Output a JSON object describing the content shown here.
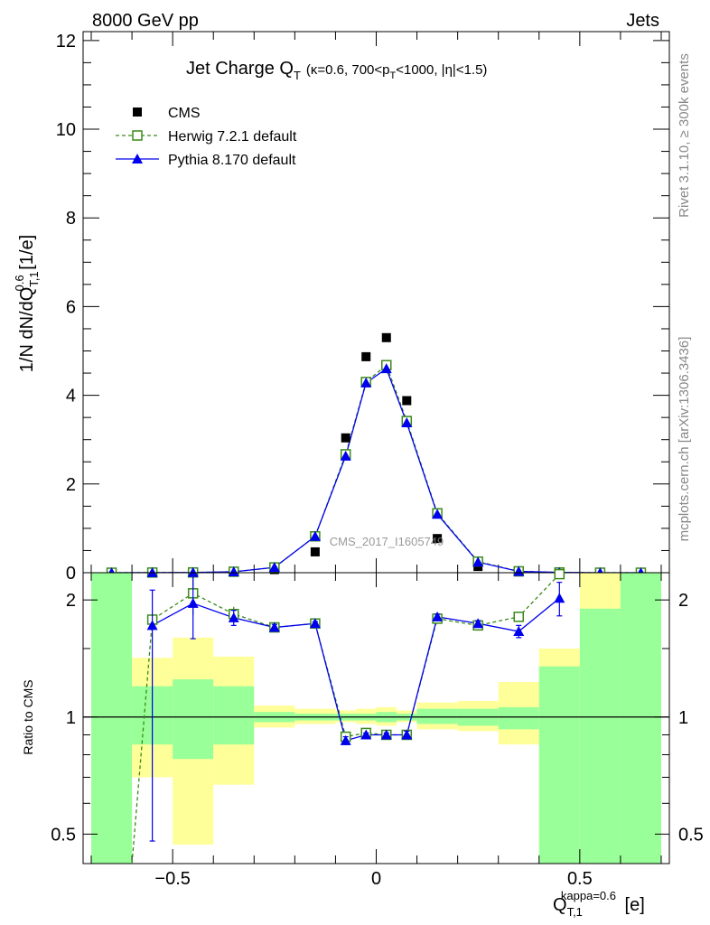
{
  "header": {
    "left": "8000 GeV pp",
    "right": "Jets"
  },
  "side_text": {
    "rivet": "Rivet 3.1.10, ≥ 300k events",
    "mcplots": "mcplots.cern.ch [arXiv:1306.3436]"
  },
  "watermark": "CMS_2017_I1605749",
  "chart_data": [
    {
      "type": "scatter",
      "title": "Jet Charge Q_T (κ=0.6, 700<p_T<1000, |η|<1.5)",
      "title_main": "Jet Charge Q",
      "title_sub": "T",
      "title_cond": "(κ=0.6, 700<p",
      "title_cond_sub": "T",
      "title_cond_end": "<1000, |η|<1.5)",
      "ylabel": "1/N dN/dQ_T,1^0.6 [1/e]",
      "ylabel_main": "1/N dN/dQ",
      "ylabel_sub": "T,1",
      "ylabel_sup": "0.6",
      "ylabel_unit": " [1/e]",
      "xlim": [
        -0.72,
        0.72
      ],
      "ylim": [
        0,
        12.2
      ],
      "yticks": [
        0,
        2,
        4,
        6,
        8,
        10,
        12
      ],
      "ytick_labels": [
        "0",
        "2",
        "4",
        "6",
        "8",
        "10",
        "12"
      ],
      "x": [
        -0.65,
        -0.55,
        -0.45,
        -0.35,
        -0.25,
        -0.15,
        -0.075,
        -0.025,
        0.025,
        0.075,
        0.15,
        0.25,
        0.35,
        0.45,
        0.55,
        0.65
      ],
      "series": [
        {
          "name": "CMS",
          "color": "#000000",
          "marker": "square-filled",
          "values": [
            0.0,
            0.002,
            0.003,
            0.012,
            0.07,
            0.47,
            3.04,
            4.87,
            5.3,
            3.88,
            0.77,
            0.14,
            0.018,
            0.003,
            0.0005,
            0.0
          ]
        },
        {
          "name": "Herwig 7.2.1 default",
          "color": "#3a8a1a",
          "marker": "square-open",
          "line": "dashed",
          "values": [
            0.0,
            0.0035,
            0.006,
            0.022,
            0.12,
            0.82,
            2.67,
            4.3,
            4.68,
            3.42,
            1.34,
            0.25,
            0.032,
            0.006,
            0.0004,
            0.0
          ]
        },
        {
          "name": "Pythia 8.170 default",
          "color": "#0000ee",
          "marker": "triangle-filled",
          "line": "solid",
          "values": [
            0.0,
            0.0033,
            0.0057,
            0.021,
            0.12,
            0.82,
            2.63,
            4.28,
            4.6,
            3.38,
            1.32,
            0.24,
            0.029,
            0.006,
            0.0004,
            0.0
          ]
        }
      ]
    },
    {
      "type": "line",
      "ylabel": "Ratio to CMS",
      "xlabel": "Q_T,1^kappa=0.6 [e]",
      "xlabel_main": "Q",
      "xlabel_sub": "T,1",
      "xlabel_sup": "kappa=0.6",
      "xlabel_unit": " [e]",
      "xlim": [
        -0.72,
        0.72
      ],
      "ylim": [
        0.42,
        2.35
      ],
      "log_scale_y": true,
      "xticks": [
        -0.5,
        0,
        0.5
      ],
      "xtick_labels": [
        "−0.5",
        "0",
        "0.5"
      ],
      "yticks": [
        0.5,
        1,
        2
      ],
      "ytick_labels": [
        "0.5",
        "1",
        "2"
      ],
      "bins": [
        [
          -0.7,
          -0.6
        ],
        [
          -0.6,
          -0.5
        ],
        [
          -0.5,
          -0.4
        ],
        [
          -0.4,
          -0.3
        ],
        [
          -0.3,
          -0.2
        ],
        [
          -0.2,
          -0.1
        ],
        [
          -0.1,
          -0.05
        ],
        [
          -0.05,
          0.0
        ],
        [
          0.0,
          0.05
        ],
        [
          0.05,
          0.1
        ],
        [
          0.1,
          0.2
        ],
        [
          0.2,
          0.3
        ],
        [
          0.3,
          0.4
        ],
        [
          0.4,
          0.5
        ],
        [
          0.5,
          0.6
        ],
        [
          0.6,
          0.7
        ]
      ],
      "band_stat": [
        [
          0.42,
          2.35
        ],
        [
          0.85,
          1.2
        ],
        [
          0.78,
          1.25
        ],
        [
          0.85,
          1.2
        ],
        [
          0.97,
          1.03
        ],
        [
          0.98,
          1.02
        ],
        [
          0.98,
          1.02
        ],
        [
          0.98,
          1.02
        ],
        [
          0.97,
          1.03
        ],
        [
          0.98,
          1.02
        ],
        [
          0.96,
          1.05
        ],
        [
          0.95,
          1.05
        ],
        [
          0.93,
          1.06
        ],
        [
          0.42,
          1.35
        ],
        [
          0.42,
          1.9
        ],
        [
          0.42,
          2.35
        ]
      ],
      "band_total": [
        [
          0.42,
          2.35
        ],
        [
          0.7,
          1.42
        ],
        [
          0.47,
          1.6
        ],
        [
          0.67,
          1.43
        ],
        [
          0.94,
          1.07
        ],
        [
          0.96,
          1.05
        ],
        [
          0.97,
          1.04
        ],
        [
          0.96,
          1.05
        ],
        [
          0.95,
          1.06
        ],
        [
          0.97,
          1.04
        ],
        [
          0.93,
          1.09
        ],
        [
          0.92,
          1.1
        ],
        [
          0.85,
          1.23
        ],
        [
          0.42,
          1.5
        ],
        [
          0.42,
          2.35
        ],
        [
          0.42,
          2.35
        ]
      ],
      "band_colors": {
        "total": "#ffff99",
        "stat": "#99ff99"
      },
      "series": [
        {
          "name": "Herwig 7.2.1 default",
          "color": "#3a8a1a",
          "x": [
            -0.55,
            -0.45,
            -0.35,
            -0.25,
            -0.15,
            -0.075,
            -0.025,
            0.025,
            0.075,
            0.15,
            0.25,
            0.35,
            0.45
          ],
          "values": [
            1.78,
            2.08,
            1.84,
            1.7,
            1.74,
            0.89,
            0.91,
            0.9,
            0.9,
            1.79,
            1.72,
            1.81,
            2.33
          ],
          "err": [
            0,
            0.25,
            0.08,
            0,
            0,
            0,
            0,
            0,
            0,
            0,
            0,
            0,
            0
          ]
        },
        {
          "name": "Pythia 8.170 default",
          "color": "#0000ee",
          "x": [
            -0.55,
            -0.45,
            -0.35,
            -0.25,
            -0.15,
            -0.075,
            -0.025,
            0.025,
            0.075,
            0.15,
            0.25,
            0.35,
            0.45
          ],
          "values": [
            1.72,
            1.96,
            1.8,
            1.7,
            1.74,
            0.87,
            0.9,
            0.9,
            0.9,
            1.81,
            1.74,
            1.66,
            2.02
          ],
          "err_lo": [
            1.24,
            0.37,
            0.08,
            0.03,
            0.02,
            0.02,
            0.01,
            0.01,
            0.02,
            0.03,
            0.03,
            0.06,
            0.2
          ],
          "err_hi": [
            0.4,
            0.37,
            0.08,
            0.03,
            0.02,
            0.02,
            0.01,
            0.01,
            0.02,
            0.03,
            0.03,
            0.06,
            0.2
          ]
        }
      ],
      "herwig_entry": {
        "x": [
          -0.6,
          -0.55
        ],
        "values": [
          0.42,
          1.78
        ]
      }
    }
  ]
}
